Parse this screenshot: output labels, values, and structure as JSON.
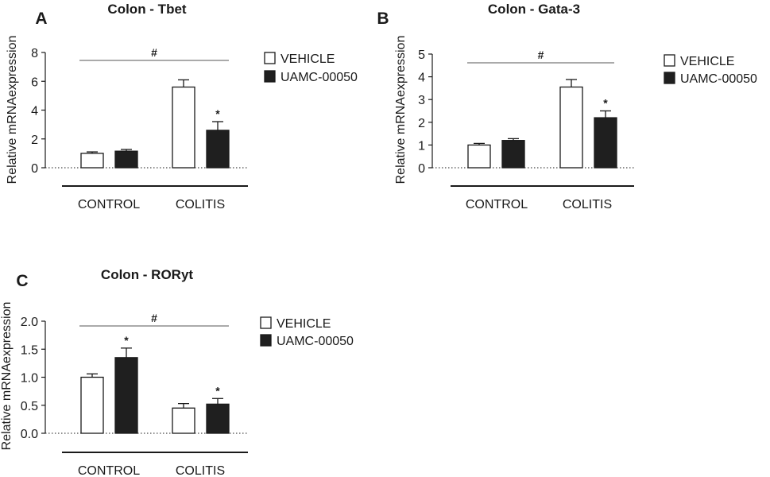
{
  "chart_data": [
    {
      "type": "bar",
      "panel": "A",
      "title": "Colon - Tbet",
      "ylabel": "Relative mRNAexpression",
      "ylim": [
        0,
        8
      ],
      "yticks": [
        "0",
        "2",
        "4",
        "6",
        "8"
      ],
      "categories": [
        "CONTROL",
        "COLITIS"
      ],
      "series": [
        {
          "name": "VEHICLE",
          "values": [
            1.0,
            5.6
          ],
          "errors": [
            0.1,
            0.5
          ]
        },
        {
          "name": "UAMC-00050",
          "values": [
            1.15,
            2.6
          ],
          "errors": [
            0.12,
            0.6
          ]
        }
      ],
      "significance": {
        "bracket": "#",
        "stars": [
          null,
          "*"
        ]
      }
    },
    {
      "type": "bar",
      "panel": "B",
      "title": "Colon - Gata-3",
      "ylabel": "Relative mRNAexpression",
      "ylim": [
        0,
        5
      ],
      "yticks": [
        "0",
        "1",
        "2",
        "3",
        "4",
        "5"
      ],
      "categories": [
        "CONTROL",
        "COLITIS"
      ],
      "series": [
        {
          "name": "VEHICLE",
          "values": [
            1.0,
            3.55
          ],
          "errors": [
            0.07,
            0.33
          ]
        },
        {
          "name": "UAMC-00050",
          "values": [
            1.2,
            2.2
          ],
          "errors": [
            0.08,
            0.3
          ]
        }
      ],
      "significance": {
        "bracket": "#",
        "stars": [
          null,
          "*"
        ]
      }
    },
    {
      "type": "bar",
      "panel": "C",
      "title": "Colon - RORyt",
      "ylabel": "Relative mRNAexpression",
      "ylim": [
        0,
        2.0
      ],
      "yticks": [
        "0.0",
        "0.5",
        "1.0",
        "1.5",
        "2.0"
      ],
      "categories": [
        "CONTROL",
        "COLITIS"
      ],
      "series": [
        {
          "name": "VEHICLE",
          "values": [
            1.0,
            0.45
          ],
          "errors": [
            0.06,
            0.08
          ]
        },
        {
          "name": "UAMC-00050",
          "values": [
            1.35,
            0.52
          ],
          "errors": [
            0.17,
            0.1
          ]
        }
      ],
      "significance": {
        "bracket": "#",
        "stars": [
          "*",
          "*"
        ]
      }
    }
  ],
  "legend": {
    "vehicle": "VEHICLE",
    "treatment": "UAMC-00050"
  },
  "colors": {
    "vehicle_fill": "#ffffff",
    "treatment_fill": "#1f1f1f",
    "stroke": "#1a1a1a"
  }
}
